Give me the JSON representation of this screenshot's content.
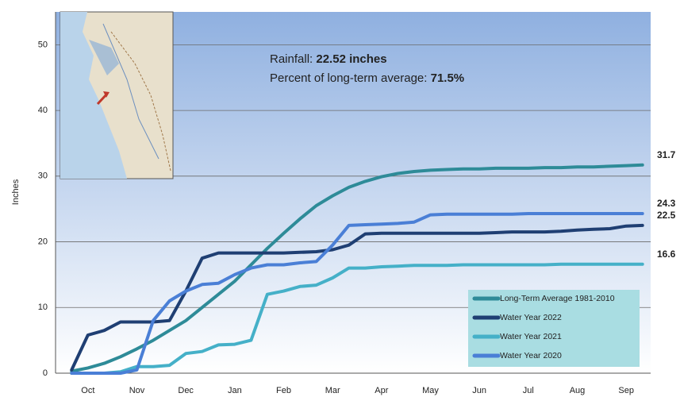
{
  "chart_data": {
    "type": "line",
    "y_label": "Inches",
    "annotations": [
      {
        "label": "Rainfall:",
        "value": "22.52 inches"
      },
      {
        "label": "Percent of long-term average:",
        "value": "71.5%"
      }
    ],
    "categories": [
      null,
      "Oct",
      null,
      null,
      "Nov",
      null,
      null,
      "Dec",
      null,
      null,
      "Jan",
      null,
      null,
      "Feb",
      null,
      null,
      "Mar",
      null,
      null,
      "Apr",
      null,
      null,
      "May",
      null,
      null,
      "Jun",
      null,
      null,
      "Jul",
      null,
      null,
      "Aug",
      null,
      null,
      "Sep",
      null
    ],
    "ylim": [
      0,
      55
    ],
    "yticks": [
      0,
      10,
      20,
      30,
      40,
      50
    ],
    "grid": true,
    "legend": "lower right",
    "series": [
      {
        "name": "Long-Term Average 1981-2010",
        "color": "#2e8b98",
        "end_label": "31.7",
        "values": [
          0.3,
          0.8,
          1.5,
          2.5,
          3.7,
          5,
          6.5,
          8,
          10,
          12,
          14,
          16.5,
          19,
          21.3,
          23.5,
          25.5,
          27,
          28.3,
          29.2,
          29.9,
          30.4,
          30.7,
          30.9,
          31,
          31.1,
          31.1,
          31.2,
          31.2,
          31.2,
          31.3,
          31.3,
          31.4,
          31.4,
          31.5,
          31.6,
          31.7
        ]
      },
      {
        "name": "Water Year 2022",
        "color": "#1f3f73",
        "end_label": "22.5",
        "values": [
          0.5,
          5.8,
          6.5,
          7.8,
          7.8,
          7.8,
          8,
          12.5,
          17.5,
          18.3,
          18.3,
          18.3,
          18.3,
          18.3,
          18.4,
          18.5,
          18.8,
          19.5,
          21.2,
          21.3,
          21.3,
          21.3,
          21.3,
          21.3,
          21.3,
          21.3,
          21.4,
          21.5,
          21.5,
          21.5,
          21.6,
          21.8,
          21.9,
          22,
          22.4,
          22.5
        ]
      },
      {
        "name": "Water Year 2021",
        "color": "#45b0c8",
        "end_label": "16.6",
        "values": [
          0,
          0,
          0,
          0.2,
          1,
          1,
          1.2,
          3,
          3.3,
          4.3,
          4.4,
          5,
          12,
          12.5,
          13.2,
          13.4,
          14.5,
          16,
          16,
          16.2,
          16.3,
          16.4,
          16.4,
          16.4,
          16.5,
          16.5,
          16.5,
          16.5,
          16.5,
          16.5,
          16.6,
          16.6,
          16.6,
          16.6,
          16.6,
          16.6
        ]
      },
      {
        "name": "Water Year 2020",
        "color": "#4a7fd6",
        "end_label": "24.3",
        "values": [
          0,
          0,
          0,
          0,
          0.5,
          8,
          11,
          12.5,
          13.5,
          13.7,
          15,
          16,
          16.5,
          16.5,
          16.8,
          17,
          19.5,
          22.5,
          22.6,
          22.7,
          22.8,
          23,
          24.1,
          24.2,
          24.2,
          24.2,
          24.2,
          24.2,
          24.3,
          24.3,
          24.3,
          24.3,
          24.3,
          24.3,
          24.3,
          24.3
        ]
      }
    ]
  }
}
